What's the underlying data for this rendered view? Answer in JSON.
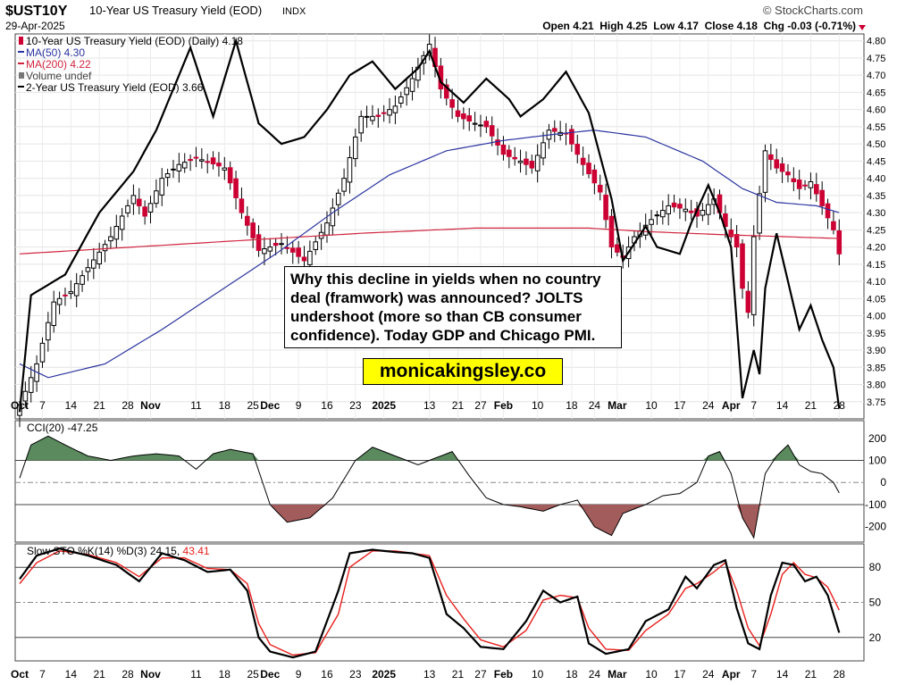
{
  "header": {
    "symbol": "$UST10Y",
    "name": "10-Year US Treasury Yield (EOD)",
    "exchange": "INDX",
    "date": "29-Apr-2025",
    "watermark": "© StockCharts.com",
    "ohlc": "Open 4.21  High 4.25  Low 4.17  Close 4.18  Chg -0.03 (-0.71%)"
  },
  "legend": {
    "main": "10-Year US Treasury Yield (EOD) (Daily) 4.18",
    "ma50": "MA(50) 4.30",
    "ma200": "MA(200) 4.22",
    "volume": "Volume undef",
    "two_year": "2-Year US Treasury Yield (EOD) 3.66",
    "cci": "CCI(20) -47.25",
    "sto": "Slow STO %K(14) %D(3) 24.15,",
    "sto_d": "43.41"
  },
  "annotation": "Why this decline in yields when no country deal (framwork) was announced? JOLTS undershoot (more so than CB consumer confidence). Today GDP and Chicago PMI.",
  "site_label": "monicakingsley.co",
  "colors": {
    "up": "#000000",
    "down": "#cc0033",
    "ma50": "#2a34a0",
    "ma200": "#d0253f",
    "cci_pos": "#5b8a5e",
    "cci_neg": "#a35c5c",
    "sto_d": "#e8201c"
  },
  "chart_data": [
    {
      "type": "candlestick",
      "title": "$UST10Y 10-Year US Treasury Yield (EOD) INDX",
      "x_labels": [
        "Oct",
        "7",
        "14",
        "21",
        "28",
        "Nov",
        "11",
        "18",
        "25",
        "Dec",
        "9",
        "16",
        "23",
        "2025",
        "13",
        "21",
        "27",
        "Feb",
        "10",
        "18",
        "24",
        "Mar",
        "10",
        "17",
        "24",
        "Apr",
        "7",
        "14",
        "21",
        "28"
      ],
      "x_label_day_index": [
        0,
        4,
        9,
        14,
        19,
        23,
        31,
        36,
        41,
        44,
        49,
        54,
        59,
        64,
        72,
        77,
        81,
        85,
        91,
        97,
        101,
        105,
        111,
        116,
        121,
        125,
        129,
        134,
        139,
        144
      ],
      "ylim": [
        3.7,
        4.82
      ],
      "y_ticks": [
        "4.80",
        "4.75",
        "4.70",
        "4.65",
        "4.60",
        "4.55",
        "4.50",
        "4.45",
        "4.40",
        "4.35",
        "4.30",
        "4.25",
        "4.20",
        "4.15",
        "4.10",
        "4.05",
        "4.00",
        "3.95",
        "3.90",
        "3.85",
        "3.80",
        "3.75"
      ],
      "close_anchors": [
        [
          0,
          3.74
        ],
        [
          3,
          3.86
        ],
        [
          6,
          4.04
        ],
        [
          9,
          4.07
        ],
        [
          12,
          4.14
        ],
        [
          16,
          4.23
        ],
        [
          20,
          4.35
        ],
        [
          22,
          4.29
        ],
        [
          25,
          4.4
        ],
        [
          28,
          4.44
        ],
        [
          31,
          4.46
        ],
        [
          36,
          4.43
        ],
        [
          39,
          4.3
        ],
        [
          42,
          4.19
        ],
        [
          46,
          4.21
        ],
        [
          50,
          4.16
        ],
        [
          54,
          4.27
        ],
        [
          57,
          4.4
        ],
        [
          60,
          4.58
        ],
        [
          63,
          4.58
        ],
        [
          66,
          4.61
        ],
        [
          69,
          4.69
        ],
        [
          72,
          4.79
        ],
        [
          74,
          4.66
        ],
        [
          77,
          4.58
        ],
        [
          80,
          4.56
        ],
        [
          82,
          4.55
        ],
        [
          85,
          4.47
        ],
        [
          88,
          4.45
        ],
        [
          90,
          4.43
        ],
        [
          93,
          4.54
        ],
        [
          96,
          4.53
        ],
        [
          99,
          4.44
        ],
        [
          102,
          4.36
        ],
        [
          104,
          4.2
        ],
        [
          106,
          4.17
        ],
        [
          108,
          4.23
        ],
        [
          111,
          4.28
        ],
        [
          114,
          4.32
        ],
        [
          117,
          4.31
        ],
        [
          119,
          4.29
        ],
        [
          122,
          4.34
        ],
        [
          124,
          4.26
        ],
        [
          126,
          4.2
        ],
        [
          127,
          4.08
        ],
        [
          128,
          4.01
        ],
        [
          129,
          4.23
        ],
        [
          131,
          4.48
        ],
        [
          133,
          4.43
        ],
        [
          135,
          4.41
        ],
        [
          137,
          4.37
        ],
        [
          139,
          4.39
        ],
        [
          141,
          4.32
        ],
        [
          143,
          4.25
        ],
        [
          144,
          4.18
        ]
      ],
      "ma50_anchors": [
        [
          0,
          3.86
        ],
        [
          5,
          3.82
        ],
        [
          15,
          3.86
        ],
        [
          25,
          3.96
        ],
        [
          35,
          4.07
        ],
        [
          45,
          4.18
        ],
        [
          55,
          4.3
        ],
        [
          65,
          4.41
        ],
        [
          75,
          4.48
        ],
        [
          85,
          4.51
        ],
        [
          95,
          4.53
        ],
        [
          101,
          4.54
        ],
        [
          110,
          4.52
        ],
        [
          120,
          4.45
        ],
        [
          127,
          4.37
        ],
        [
          133,
          4.33
        ],
        [
          140,
          4.32
        ],
        [
          144,
          4.3
        ]
      ],
      "ma200_anchors": [
        [
          0,
          4.18
        ],
        [
          20,
          4.2
        ],
        [
          40,
          4.22
        ],
        [
          60,
          4.24
        ],
        [
          80,
          4.255
        ],
        [
          100,
          4.255
        ],
        [
          110,
          4.245
        ],
        [
          125,
          4.235
        ],
        [
          144,
          4.225
        ]
      ],
      "two_year_anchors": [
        [
          0,
          3.72
        ],
        [
          2,
          4.06
        ],
        [
          8,
          4.12
        ],
        [
          14,
          4.3
        ],
        [
          20,
          4.42
        ],
        [
          24,
          4.54
        ],
        [
          30,
          4.78
        ],
        [
          34,
          4.58
        ],
        [
          38,
          4.8
        ],
        [
          42,
          4.56
        ],
        [
          46,
          4.5
        ],
        [
          50,
          4.52
        ],
        [
          54,
          4.6
        ],
        [
          58,
          4.7
        ],
        [
          62,
          4.74
        ],
        [
          66,
          4.66
        ],
        [
          70,
          4.72
        ],
        [
          72,
          4.77
        ],
        [
          74,
          4.68
        ],
        [
          78,
          4.62
        ],
        [
          82,
          4.69
        ],
        [
          86,
          4.63
        ],
        [
          88,
          4.58
        ],
        [
          92,
          4.63
        ],
        [
          96,
          4.71
        ],
        [
          100,
          4.59
        ],
        [
          104,
          4.34
        ],
        [
          106,
          4.16
        ],
        [
          110,
          4.26
        ],
        [
          112,
          4.2
        ],
        [
          116,
          4.18
        ],
        [
          118,
          4.27
        ],
        [
          121,
          4.38
        ],
        [
          123,
          4.3
        ],
        [
          125,
          4.2
        ],
        [
          127,
          3.76
        ],
        [
          129,
          3.9
        ],
        [
          130,
          3.83
        ],
        [
          131,
          4.08
        ],
        [
          133,
          4.24
        ],
        [
          135,
          4.1
        ],
        [
          137,
          3.96
        ],
        [
          139,
          4.03
        ],
        [
          141,
          3.93
        ],
        [
          143,
          3.85
        ],
        [
          144,
          3.73
        ]
      ]
    },
    {
      "type": "line",
      "title": "CCI(20) -47.25",
      "ylim": [
        -270,
        280
      ],
      "y_ticks": [
        "200",
        "100",
        "0",
        "-100",
        "-200"
      ],
      "reference_lines": [
        100,
        0,
        -100
      ],
      "anchors": [
        [
          0,
          20
        ],
        [
          2,
          170
        ],
        [
          5,
          210
        ],
        [
          8,
          170
        ],
        [
          12,
          120
        ],
        [
          16,
          100
        ],
        [
          20,
          120
        ],
        [
          24,
          130
        ],
        [
          28,
          120
        ],
        [
          31,
          60
        ],
        [
          34,
          130
        ],
        [
          37,
          150
        ],
        [
          41,
          130
        ],
        [
          44,
          -100
        ],
        [
          47,
          -180
        ],
        [
          51,
          -160
        ],
        [
          55,
          -70
        ],
        [
          59,
          100
        ],
        [
          62,
          160
        ],
        [
          66,
          120
        ],
        [
          70,
          80
        ],
        [
          74,
          120
        ],
        [
          76,
          140
        ],
        [
          79,
          30
        ],
        [
          82,
          -70
        ],
        [
          85,
          -100
        ],
        [
          88,
          -110
        ],
        [
          92,
          -130
        ],
        [
          95,
          -100
        ],
        [
          98,
          -80
        ],
        [
          101,
          -200
        ],
        [
          104,
          -240
        ],
        [
          106,
          -140
        ],
        [
          110,
          -100
        ],
        [
          113,
          -60
        ],
        [
          116,
          -50
        ],
        [
          119,
          0
        ],
        [
          121,
          120
        ],
        [
          123,
          140
        ],
        [
          125,
          40
        ],
        [
          127,
          -160
        ],
        [
          129,
          -250
        ],
        [
          131,
          40
        ],
        [
          133,
          120
        ],
        [
          135,
          170
        ],
        [
          137,
          80
        ],
        [
          139,
          50
        ],
        [
          141,
          40
        ],
        [
          143,
          0
        ],
        [
          144,
          -47.25
        ]
      ]
    },
    {
      "type": "line",
      "title": "Slow STO %K(14) %D(3) 24.15, 43.41",
      "ylim": [
        0,
        100
      ],
      "y_ticks": [
        "80",
        "50",
        "20"
      ],
      "reference_lines": [
        80,
        50,
        20
      ],
      "series": [
        {
          "name": "%K(14)",
          "anchors": [
            [
              0,
              70
            ],
            [
              3,
              90
            ],
            [
              7,
              96
            ],
            [
              12,
              90
            ],
            [
              17,
              82
            ],
            [
              21,
              68
            ],
            [
              25,
              92
            ],
            [
              29,
              86
            ],
            [
              33,
              76
            ],
            [
              37,
              78
            ],
            [
              40,
              60
            ],
            [
              42,
              20
            ],
            [
              44,
              8
            ],
            [
              48,
              3
            ],
            [
              52,
              8
            ],
            [
              56,
              60
            ],
            [
              58,
              92
            ],
            [
              62,
              95
            ],
            [
              66,
              93
            ],
            [
              69,
              92
            ],
            [
              72,
              88
            ],
            [
              75,
              40
            ],
            [
              78,
              28
            ],
            [
              81,
              12
            ],
            [
              85,
              10
            ],
            [
              89,
              34
            ],
            [
              92,
              60
            ],
            [
              95,
              50
            ],
            [
              98,
              55
            ],
            [
              100,
              15
            ],
            [
              103,
              6
            ],
            [
              107,
              10
            ],
            [
              110,
              34
            ],
            [
              114,
              44
            ],
            [
              117,
              72
            ],
            [
              119,
              62
            ],
            [
              122,
              82
            ],
            [
              124,
              86
            ],
            [
              126,
              45
            ],
            [
              128,
              15
            ],
            [
              130,
              10
            ],
            [
              132,
              56
            ],
            [
              134,
              84
            ],
            [
              136,
              82
            ],
            [
              138,
              68
            ],
            [
              140,
              72
            ],
            [
              142,
              56
            ],
            [
              144,
              24.15
            ]
          ]
        },
        {
          "name": "%D(3)",
          "anchors": [
            [
              0,
              66
            ],
            [
              3,
              84
            ],
            [
              7,
              94
            ],
            [
              12,
              91
            ],
            [
              17,
              84
            ],
            [
              21,
              72
            ],
            [
              25,
              88
            ],
            [
              29,
              88
            ],
            [
              33,
              79
            ],
            [
              37,
              78
            ],
            [
              40,
              66
            ],
            [
              42,
              32
            ],
            [
              44,
              14
            ],
            [
              48,
              5
            ],
            [
              52,
              7
            ],
            [
              56,
              40
            ],
            [
              58,
              80
            ],
            [
              62,
              94
            ],
            [
              66,
              94
            ],
            [
              69,
              92
            ],
            [
              72,
              90
            ],
            [
              75,
              56
            ],
            [
              78,
              36
            ],
            [
              81,
              18
            ],
            [
              85,
              12
            ],
            [
              89,
              26
            ],
            [
              92,
              52
            ],
            [
              95,
              56
            ],
            [
              98,
              54
            ],
            [
              100,
              28
            ],
            [
              103,
              10
            ],
            [
              107,
              9
            ],
            [
              110,
              26
            ],
            [
              114,
              40
            ],
            [
              117,
              62
            ],
            [
              119,
              66
            ],
            [
              122,
              76
            ],
            [
              124,
              84
            ],
            [
              126,
              60
            ],
            [
              128,
              28
            ],
            [
              130,
              13
            ],
            [
              132,
              40
            ],
            [
              134,
              74
            ],
            [
              136,
              84
            ],
            [
              138,
              74
            ],
            [
              140,
              71
            ],
            [
              142,
              63
            ],
            [
              144,
              43.41
            ]
          ]
        }
      ]
    }
  ]
}
